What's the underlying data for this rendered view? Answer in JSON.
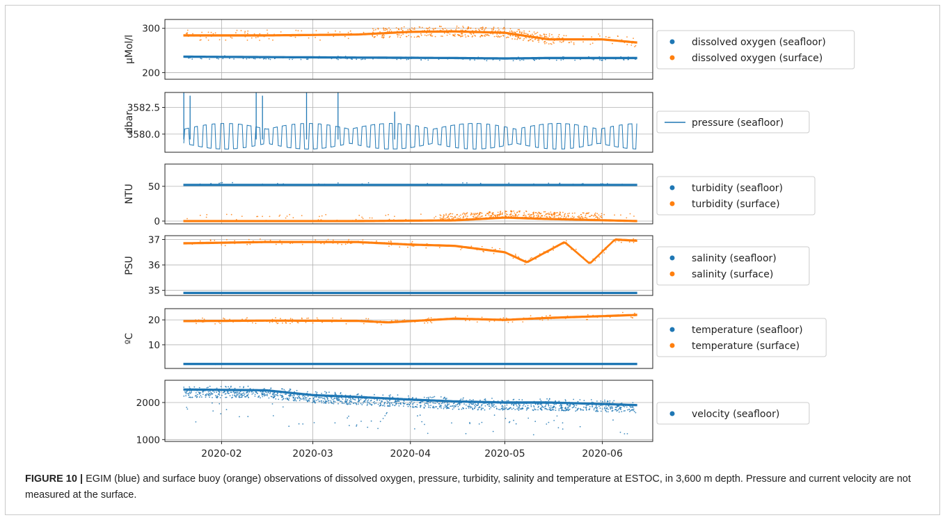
{
  "figure": {
    "caption_label": "FIGURE 10 |",
    "caption_text": "EGIM (blue) and surface buoy (orange) observations of dissolved oxygen, pressure, turbidity, salinity and temperature at ESTOC, in 3,600 m depth. Pressure and current velocity are not measured at the surface."
  },
  "colors": {
    "seafloor": "#1f77b4",
    "surface": "#ff7f0e",
    "grid": "#b0b0b0"
  },
  "chart_data": [
    {
      "type": "scatter",
      "ylabel": "μMol/l",
      "ylim": [
        185,
        320
      ],
      "yticks": [
        200,
        300
      ],
      "ytick_labels": [
        "200",
        "300"
      ],
      "grid": true,
      "legend": "right",
      "series": [
        {
          "name": "dissolved oxygen (seafloor)",
          "color": "#1f77b4",
          "x": [
            "2020-01-20",
            "2020-02-15",
            "2020-03-15",
            "2020-04-15",
            "2020-05-01",
            "2020-05-15",
            "2020-06-01",
            "2020-06-12"
          ],
          "y": [
            236,
            235,
            234,
            233,
            232,
            233,
            233,
            233
          ]
        },
        {
          "name": "dissolved oxygen (surface)",
          "color": "#ff7f0e",
          "x": [
            "2020-01-20",
            "2020-02-15",
            "2020-03-15",
            "2020-04-01",
            "2020-04-15",
            "2020-05-01",
            "2020-05-15",
            "2020-06-01",
            "2020-06-12"
          ],
          "y": [
            284,
            284,
            286,
            292,
            293,
            290,
            275,
            275,
            268
          ]
        }
      ]
    },
    {
      "type": "line",
      "ylabel": "dbar",
      "ylim": [
        3578.3,
        3583.9
      ],
      "yticks": [
        3580.0,
        3582.5
      ],
      "ytick_labels": [
        "3580.0",
        "3582.5"
      ],
      "grid": true,
      "legend": "right",
      "series": [
        {
          "name": "pressure (seafloor)",
          "color": "#1f77b4",
          "x": [
            "2020-01-20",
            "2020-02-15",
            "2020-03-15",
            "2020-04-15",
            "2020-05-15",
            "2020-06-12"
          ],
          "y": [
            3579.8,
            3579.8,
            3579.8,
            3579.8,
            3579.8,
            3579.8
          ]
        }
      ]
    },
    {
      "type": "scatter",
      "ylabel": "NTU",
      "ylim": [
        -4,
        82
      ],
      "yticks": [
        0,
        50
      ],
      "ytick_labels": [
        "0",
        "50"
      ],
      "grid": true,
      "legend": "right",
      "series": [
        {
          "name": "turbidity (seafloor)",
          "color": "#1f77b4",
          "x": [
            "2020-01-20",
            "2020-03-15",
            "2020-05-01",
            "2020-06-12"
          ],
          "y": [
            52,
            52,
            52,
            52
          ]
        },
        {
          "name": "turbidity (surface)",
          "color": "#ff7f0e",
          "x": [
            "2020-01-20",
            "2020-03-15",
            "2020-04-15",
            "2020-05-01",
            "2020-05-15",
            "2020-06-12"
          ],
          "y": [
            0,
            0,
            1,
            5,
            3,
            0
          ]
        }
      ]
    },
    {
      "type": "scatter",
      "ylabel": "PSU",
      "ylim": [
        34.8,
        37.15
      ],
      "yticks": [
        35,
        36,
        37
      ],
      "ytick_labels": [
        "35",
        "36",
        "37"
      ],
      "grid": true,
      "legend": "right",
      "series": [
        {
          "name": "salinity (seafloor)",
          "color": "#1f77b4",
          "x": [
            "2020-01-20",
            "2020-03-15",
            "2020-05-01",
            "2020-06-12"
          ],
          "y": [
            34.9,
            34.9,
            34.9,
            34.9
          ]
        },
        {
          "name": "salinity (surface)",
          "color": "#ff7f0e",
          "x": [
            "2020-01-20",
            "2020-02-15",
            "2020-03-15",
            "2020-04-01",
            "2020-04-15",
            "2020-05-01",
            "2020-05-08",
            "2020-05-20",
            "2020-05-28",
            "2020-06-05",
            "2020-06-12"
          ],
          "y": [
            36.85,
            36.9,
            36.9,
            36.8,
            36.75,
            36.5,
            36.1,
            36.9,
            36.05,
            37.0,
            36.95
          ]
        }
      ]
    },
    {
      "type": "scatter",
      "ylabel": "ºC",
      "ylim": [
        0.5,
        24.5
      ],
      "yticks": [
        10,
        20
      ],
      "ytick_labels": [
        "10",
        "20"
      ],
      "grid": true,
      "legend": "right",
      "series": [
        {
          "name": "temperature (seafloor)",
          "color": "#1f77b4",
          "x": [
            "2020-01-20",
            "2020-03-15",
            "2020-05-01",
            "2020-06-12"
          ],
          "y": [
            2.3,
            2.3,
            2.3,
            2.3
          ]
        },
        {
          "name": "temperature (surface)",
          "color": "#ff7f0e",
          "x": [
            "2020-01-20",
            "2020-02-15",
            "2020-03-15",
            "2020-03-25",
            "2020-04-15",
            "2020-05-01",
            "2020-05-15",
            "2020-06-01",
            "2020-06-12"
          ],
          "y": [
            19.5,
            19.7,
            19.6,
            19.0,
            20.5,
            20.0,
            20.8,
            21.5,
            22.0
          ]
        }
      ]
    },
    {
      "type": "scatter",
      "ylabel": "",
      "ylim": [
        950,
        2600
      ],
      "yticks": [
        1000,
        2000
      ],
      "ytick_labels": [
        "1000",
        "2000"
      ],
      "xticks": [
        "2020-02-01",
        "2020-03-01",
        "2020-04-01",
        "2020-05-01",
        "2020-06-01"
      ],
      "xtick_labels": [
        "2020-02",
        "2020-03",
        "2020-04",
        "2020-05",
        "2020-06"
      ],
      "xlim": [
        "2020-01-14",
        "2020-06-17"
      ],
      "grid": true,
      "legend": "right",
      "series": [
        {
          "name": "velocity (seafloor)",
          "color": "#1f77b4",
          "x": [
            "2020-01-20",
            "2020-02-15",
            "2020-03-01",
            "2020-03-15",
            "2020-04-01",
            "2020-04-15",
            "2020-05-01",
            "2020-05-15",
            "2020-06-01",
            "2020-06-12"
          ],
          "y": [
            2350,
            2330,
            2200,
            2150,
            2080,
            2030,
            2000,
            2000,
            1960,
            1930
          ]
        }
      ]
    }
  ]
}
